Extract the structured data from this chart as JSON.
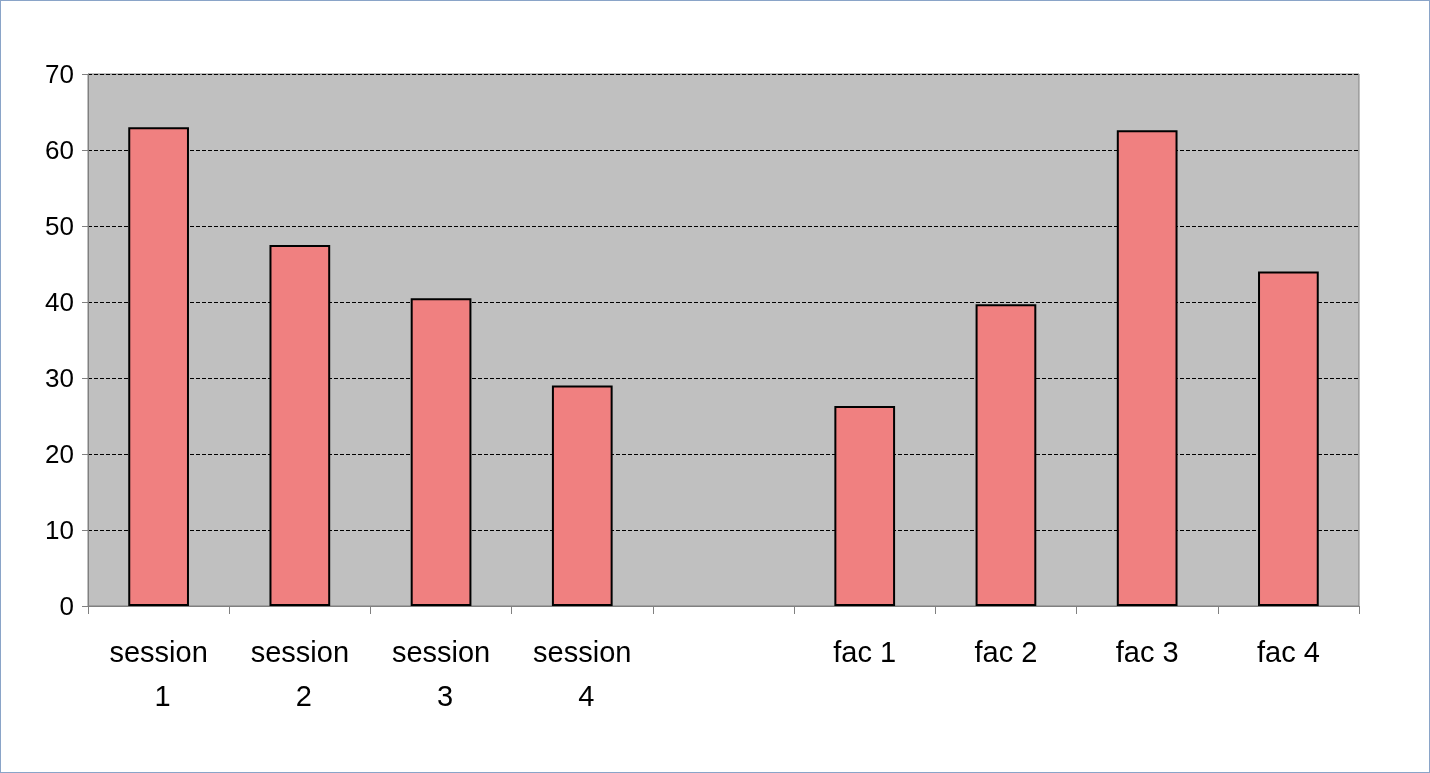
{
  "chart_data": {
    "type": "bar",
    "categories": [
      "session 1",
      "session 2",
      "session 3",
      "session 4",
      null,
      "fac 1",
      "fac 2",
      "fac 3",
      "fac 4"
    ],
    "values": [
      63,
      47.5,
      40.5,
      29,
      null,
      26.3,
      39.7,
      62.6,
      44
    ],
    "color": "#f08080",
    "ylim": [
      0,
      70
    ],
    "yticks": [
      0,
      10,
      20,
      30,
      40,
      50,
      60,
      70
    ],
    "grid": true
  }
}
